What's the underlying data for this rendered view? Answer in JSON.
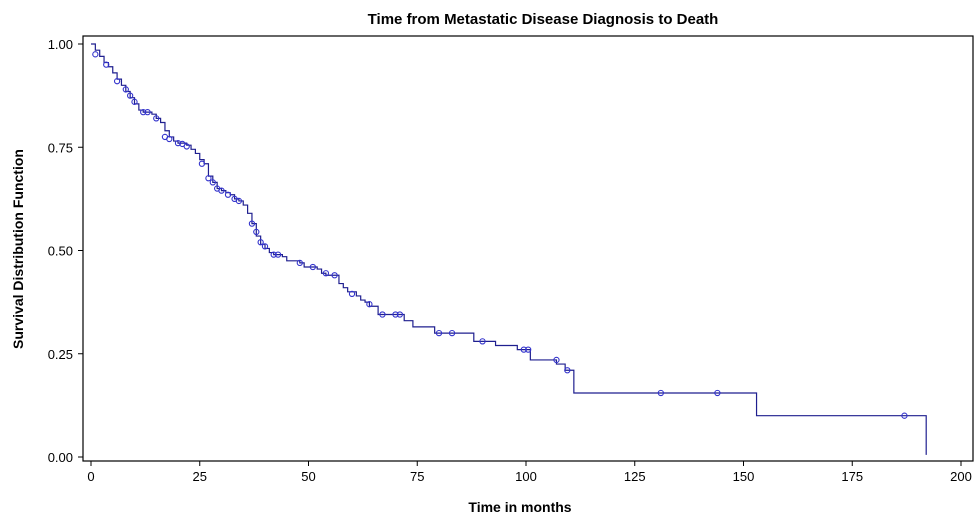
{
  "chart_data": {
    "type": "line",
    "title": "Time from Metastatic Disease Diagnosis to Death",
    "xlabel": "Time in months",
    "ylabel": "Survival Distribution Function",
    "xlim": [
      0,
      200
    ],
    "ylim": [
      0,
      1
    ],
    "x_ticks": [
      "0",
      "25",
      "50",
      "75",
      "100",
      "125",
      "150",
      "175",
      "200"
    ],
    "y_ticks": [
      "0.00",
      "0.25",
      "0.50",
      "0.75",
      "1.00"
    ],
    "grid": false,
    "legend": "none",
    "line_color": "#1f1f8f",
    "marker_color": "#3333cc",
    "series": [
      {
        "step_points": [
          [
            0,
            1.0
          ],
          [
            1,
            0.985
          ],
          [
            2,
            0.97
          ],
          [
            3,
            0.955
          ],
          [
            4,
            0.945
          ],
          [
            5,
            0.93
          ],
          [
            6,
            0.915
          ],
          [
            7,
            0.9
          ],
          [
            8,
            0.885
          ],
          [
            9,
            0.87
          ],
          [
            10,
            0.855
          ],
          [
            11,
            0.84
          ],
          [
            12,
            0.835
          ],
          [
            14,
            0.83
          ],
          [
            15,
            0.82
          ],
          [
            16,
            0.81
          ],
          [
            17,
            0.79
          ],
          [
            18,
            0.775
          ],
          [
            19,
            0.765
          ],
          [
            20,
            0.76
          ],
          [
            22,
            0.755
          ],
          [
            23,
            0.745
          ],
          [
            24,
            0.735
          ],
          [
            25,
            0.72
          ],
          [
            26,
            0.71
          ],
          [
            27,
            0.68
          ],
          [
            28,
            0.665
          ],
          [
            29,
            0.65
          ],
          [
            30,
            0.645
          ],
          [
            31,
            0.64
          ],
          [
            32,
            0.635
          ],
          [
            33,
            0.625
          ],
          [
            34,
            0.62
          ],
          [
            35,
            0.61
          ],
          [
            36,
            0.59
          ],
          [
            37,
            0.565
          ],
          [
            38,
            0.535
          ],
          [
            39,
            0.515
          ],
          [
            40,
            0.505
          ],
          [
            41,
            0.495
          ],
          [
            42,
            0.49
          ],
          [
            44,
            0.485
          ],
          [
            45,
            0.475
          ],
          [
            48,
            0.47
          ],
          [
            49,
            0.46
          ],
          [
            52,
            0.455
          ],
          [
            53,
            0.445
          ],
          [
            54,
            0.44
          ],
          [
            57,
            0.42
          ],
          [
            58,
            0.41
          ],
          [
            59,
            0.4
          ],
          [
            61,
            0.39
          ],
          [
            62,
            0.38
          ],
          [
            63,
            0.375
          ],
          [
            64,
            0.365
          ],
          [
            66,
            0.345
          ],
          [
            72,
            0.33
          ],
          [
            74,
            0.315
          ],
          [
            79,
            0.3
          ],
          [
            88,
            0.28
          ],
          [
            93,
            0.27
          ],
          [
            98,
            0.26
          ],
          [
            101,
            0.235
          ],
          [
            107,
            0.225
          ],
          [
            109,
            0.21
          ],
          [
            111,
            0.155
          ],
          [
            153,
            0.1
          ],
          [
            192,
            0.1
          ],
          [
            192,
            0.005
          ]
        ],
        "censored": [
          [
            1,
            0.975
          ],
          [
            3.5,
            0.95
          ],
          [
            6,
            0.91
          ],
          [
            8,
            0.89
          ],
          [
            9,
            0.875
          ],
          [
            10,
            0.86
          ],
          [
            12,
            0.835
          ],
          [
            13,
            0.835
          ],
          [
            15,
            0.82
          ],
          [
            17,
            0.775
          ],
          [
            18,
            0.77
          ],
          [
            20,
            0.76
          ],
          [
            21,
            0.758
          ],
          [
            22,
            0.752
          ],
          [
            25.5,
            0.71
          ],
          [
            27,
            0.675
          ],
          [
            28,
            0.665
          ],
          [
            29,
            0.65
          ],
          [
            30,
            0.645
          ],
          [
            31.5,
            0.635
          ],
          [
            33,
            0.625
          ],
          [
            34,
            0.62
          ],
          [
            37,
            0.565
          ],
          [
            38,
            0.545
          ],
          [
            39,
            0.52
          ],
          [
            40,
            0.51
          ],
          [
            42,
            0.49
          ],
          [
            43,
            0.49
          ],
          [
            48,
            0.47
          ],
          [
            51,
            0.46
          ],
          [
            54,
            0.445
          ],
          [
            56,
            0.44
          ],
          [
            60,
            0.395
          ],
          [
            64,
            0.37
          ],
          [
            67,
            0.345
          ],
          [
            70,
            0.345
          ],
          [
            71,
            0.345
          ],
          [
            80,
            0.3
          ],
          [
            83,
            0.3
          ],
          [
            90,
            0.28
          ],
          [
            99.5,
            0.26
          ],
          [
            100.5,
            0.26
          ],
          [
            107,
            0.235
          ],
          [
            109.5,
            0.21
          ],
          [
            131,
            0.155
          ],
          [
            144,
            0.155
          ],
          [
            187,
            0.1
          ]
        ]
      }
    ]
  }
}
